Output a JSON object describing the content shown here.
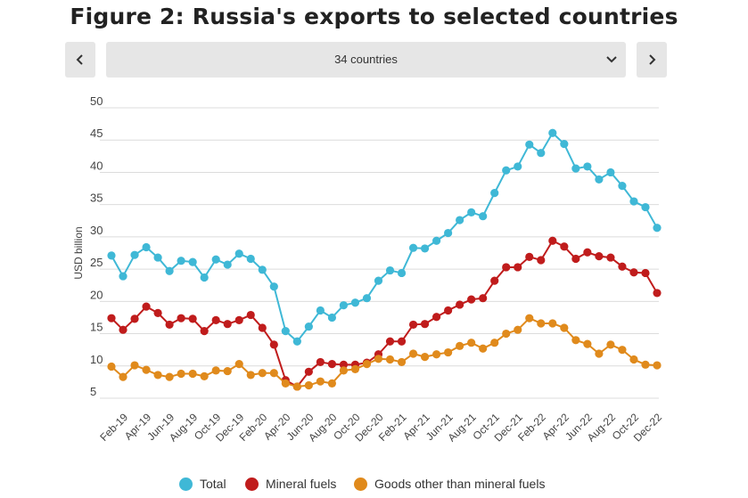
{
  "title": "Figure 2: Russia's exports to selected countries",
  "nav": {
    "selector_value": "34 countries",
    "prev_icon": "chevron-left-icon",
    "next_icon": "chevron-right-icon",
    "dropdown_icon": "chevron-down-icon"
  },
  "chart_data": {
    "type": "line",
    "ylabel": "USD billion",
    "xlabel": "",
    "ylim": [
      5,
      50
    ],
    "yticks": [
      5,
      10,
      15,
      20,
      25,
      30,
      35,
      40,
      45,
      50
    ],
    "grid": true,
    "legend_position": "bottom",
    "categories": [
      "Jan-19",
      "Feb-19",
      "Mar-19",
      "Apr-19",
      "May-19",
      "Jun-19",
      "Jul-19",
      "Aug-19",
      "Sep-19",
      "Oct-19",
      "Nov-19",
      "Dec-19",
      "Jan-20",
      "Feb-20",
      "Mar-20",
      "Apr-20",
      "May-20",
      "Jun-20",
      "Jul-20",
      "Aug-20",
      "Sep-20",
      "Oct-20",
      "Nov-20",
      "Dec-20",
      "Jan-21",
      "Feb-21",
      "Mar-21",
      "Apr-21",
      "May-21",
      "Jun-21",
      "Jul-21",
      "Aug-21",
      "Sep-21",
      "Oct-21",
      "Nov-21",
      "Dec-21",
      "Jan-22",
      "Feb-22",
      "Mar-22",
      "Apr-22",
      "May-22",
      "Jun-22",
      "Jul-22",
      "Aug-22",
      "Sep-22",
      "Oct-22",
      "Nov-22",
      "Dec-22"
    ],
    "tick_labels": [
      "Feb-19",
      "Apr-19",
      "Jun-19",
      "Aug-19",
      "Oct-19",
      "Dec-19",
      "Feb-20",
      "Apr-20",
      "Jun-20",
      "Aug-20",
      "Oct-20",
      "Dec-20",
      "Feb-21",
      "Apr-21",
      "Jun-21",
      "Aug-21",
      "Oct-21",
      "Dec-21",
      "Feb-22",
      "Apr-22",
      "Jun-22",
      "Aug-22",
      "Oct-22",
      "Dec-22"
    ],
    "series": [
      {
        "name": "Total",
        "color": "#3fb8d6",
        "values": [
          27.1,
          23.9,
          27.2,
          28.4,
          26.8,
          24.7,
          26.3,
          26.1,
          23.7,
          26.5,
          25.7,
          27.4,
          26.6,
          24.9,
          22.3,
          15.4,
          13.8,
          16.1,
          18.6,
          17.5,
          19.4,
          19.8,
          20.5,
          23.2,
          24.8,
          24.4,
          28.3,
          28.2,
          29.4,
          30.6,
          32.6,
          33.8,
          33.2,
          36.8,
          40.3,
          40.9,
          44.3,
          43.0,
          46.1,
          44.4,
          40.6,
          40.9,
          38.9,
          40.0,
          37.9,
          35.5,
          34.6,
          31.4
        ]
      },
      {
        "name": "Mineral fuels",
        "color": "#c01c1c",
        "values": [
          17.4,
          15.6,
          17.3,
          19.2,
          18.2,
          16.4,
          17.4,
          17.3,
          15.4,
          17.1,
          16.5,
          17.1,
          17.9,
          15.9,
          13.3,
          7.8,
          6.8,
          9.1,
          10.6,
          10.3,
          10.2,
          10.2,
          10.5,
          11.8,
          13.8,
          13.8,
          16.4,
          16.5,
          17.6,
          18.6,
          19.5,
          20.3,
          20.5,
          23.2,
          25.3,
          25.3,
          26.9,
          26.4,
          29.4,
          28.5,
          26.6,
          27.6,
          27.0,
          26.8,
          25.4,
          24.5,
          24.4,
          21.3
        ]
      },
      {
        "name": "Goods other than mineral fuels",
        "color": "#e08a1c",
        "values": [
          9.9,
          8.3,
          10.1,
          9.4,
          8.6,
          8.3,
          8.8,
          8.8,
          8.4,
          9.3,
          9.2,
          10.3,
          8.6,
          8.9,
          8.9,
          7.3,
          6.8,
          7.0,
          7.6,
          7.3,
          9.3,
          9.5,
          10.3,
          11.1,
          11.0,
          10.6,
          11.9,
          11.4,
          11.8,
          12.1,
          13.1,
          13.6,
          12.7,
          13.6,
          15.0,
          15.6,
          17.4,
          16.6,
          16.6,
          15.9,
          14.0,
          13.4,
          11.9,
          13.3,
          12.5,
          11.0,
          10.2,
          10.1
        ]
      }
    ]
  }
}
